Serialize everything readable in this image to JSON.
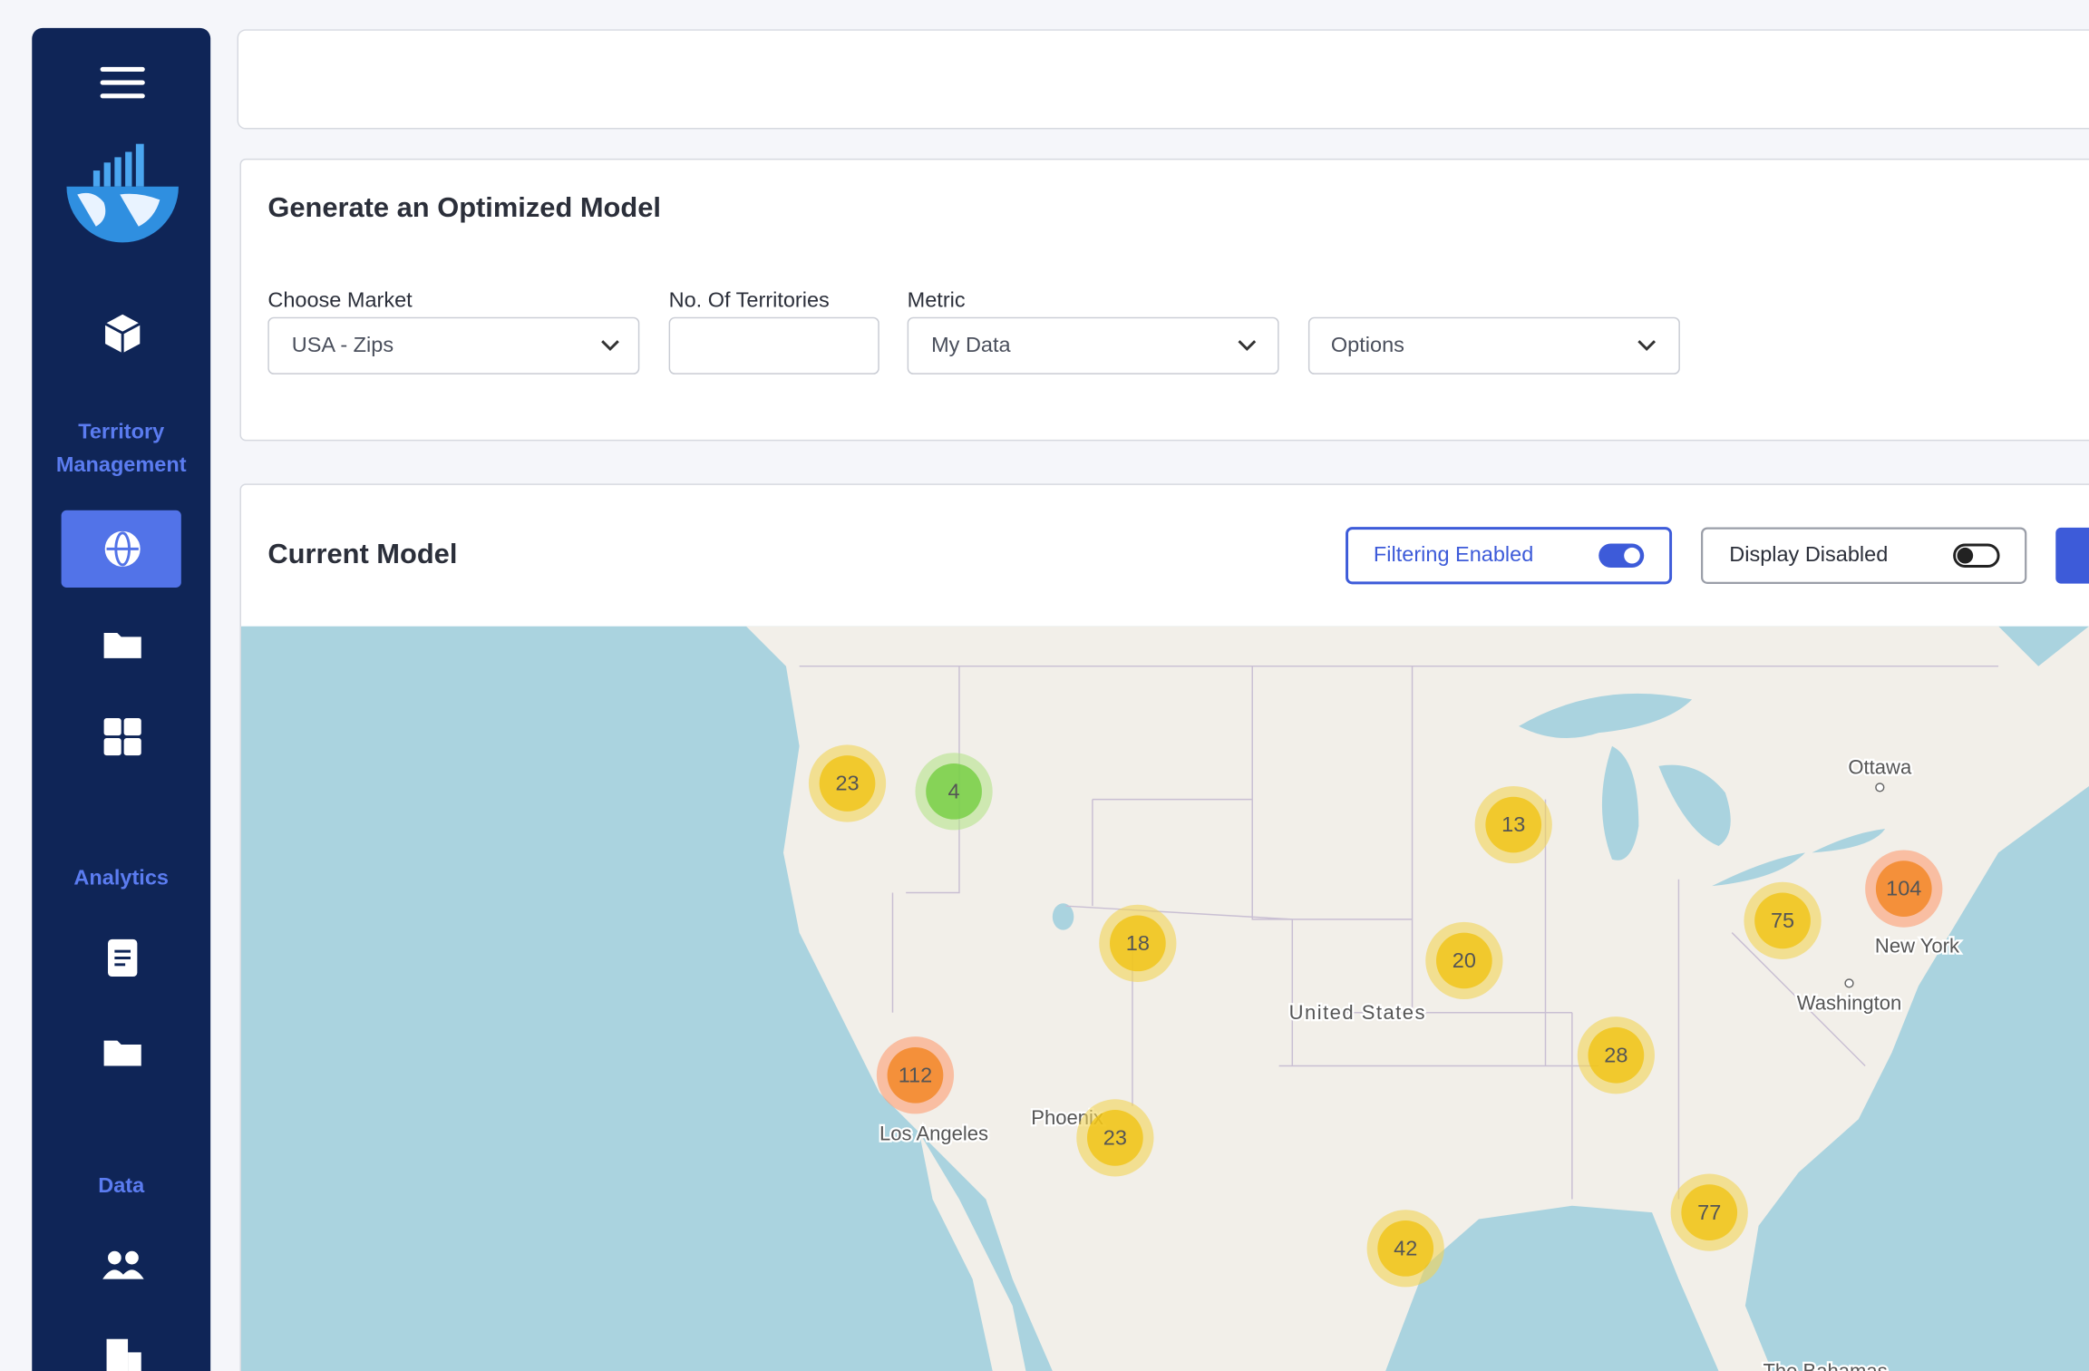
{
  "sidebar": {
    "sections": [
      "Territory Management",
      "Analytics",
      "Data"
    ]
  },
  "optimize": {
    "title": "Generate an Optimized Model",
    "fields": [
      {
        "label": "Choose Market",
        "value": "USA - Zips"
      },
      {
        "label": "No. Of Territories"
      },
      {
        "label": "Metric",
        "value": "My Data"
      },
      {
        "value": "Options"
      }
    ]
  },
  "current_model": {
    "title": "Current Model",
    "toggles": [
      "Filtering Enabled",
      "Display Disabled"
    ],
    "map": {
      "places": [
        "Ottawa",
        "New York",
        "Washington",
        "United States",
        "Los Angeles",
        "Phoenix",
        "The Bahamas"
      ],
      "clusters": [
        23,
        4,
        13,
        18,
        20,
        104,
        75,
        112,
        28,
        23,
        77,
        42
      ]
    }
  }
}
